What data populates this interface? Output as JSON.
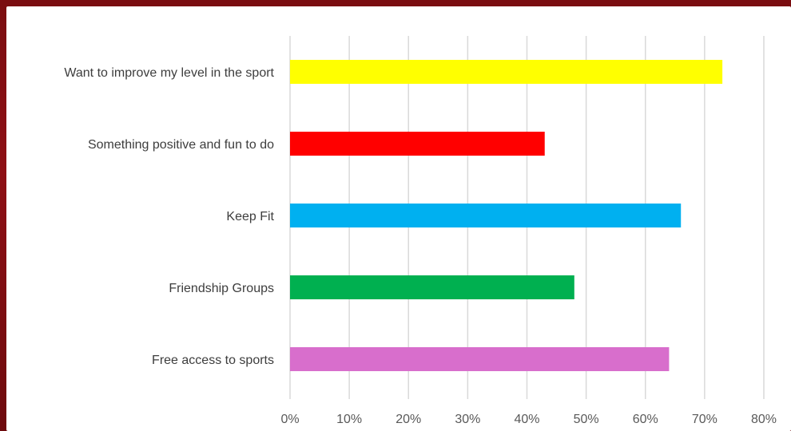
{
  "chart_data": {
    "type": "bar",
    "orientation": "horizontal",
    "categories": [
      "Want to improve my level in the sport",
      "Something positive and fun to do",
      "Keep Fit",
      "Friendship Groups",
      "Free access to sports"
    ],
    "values": [
      73,
      43,
      66,
      48,
      64
    ],
    "colors": [
      "#ffff00",
      "#ff0000",
      "#00b0f0",
      "#00b050",
      "#d86ecc"
    ],
    "xlim": [
      0,
      80
    ],
    "xticks": [
      0,
      10,
      20,
      30,
      40,
      50,
      60,
      70,
      80
    ],
    "xtick_labels": [
      "0%",
      "10%",
      "20%",
      "30%",
      "40%",
      "50%",
      "60%",
      "70%",
      "80%"
    ],
    "grid": true,
    "legend": "none",
    "title": "",
    "xlabel": "",
    "ylabel": ""
  }
}
